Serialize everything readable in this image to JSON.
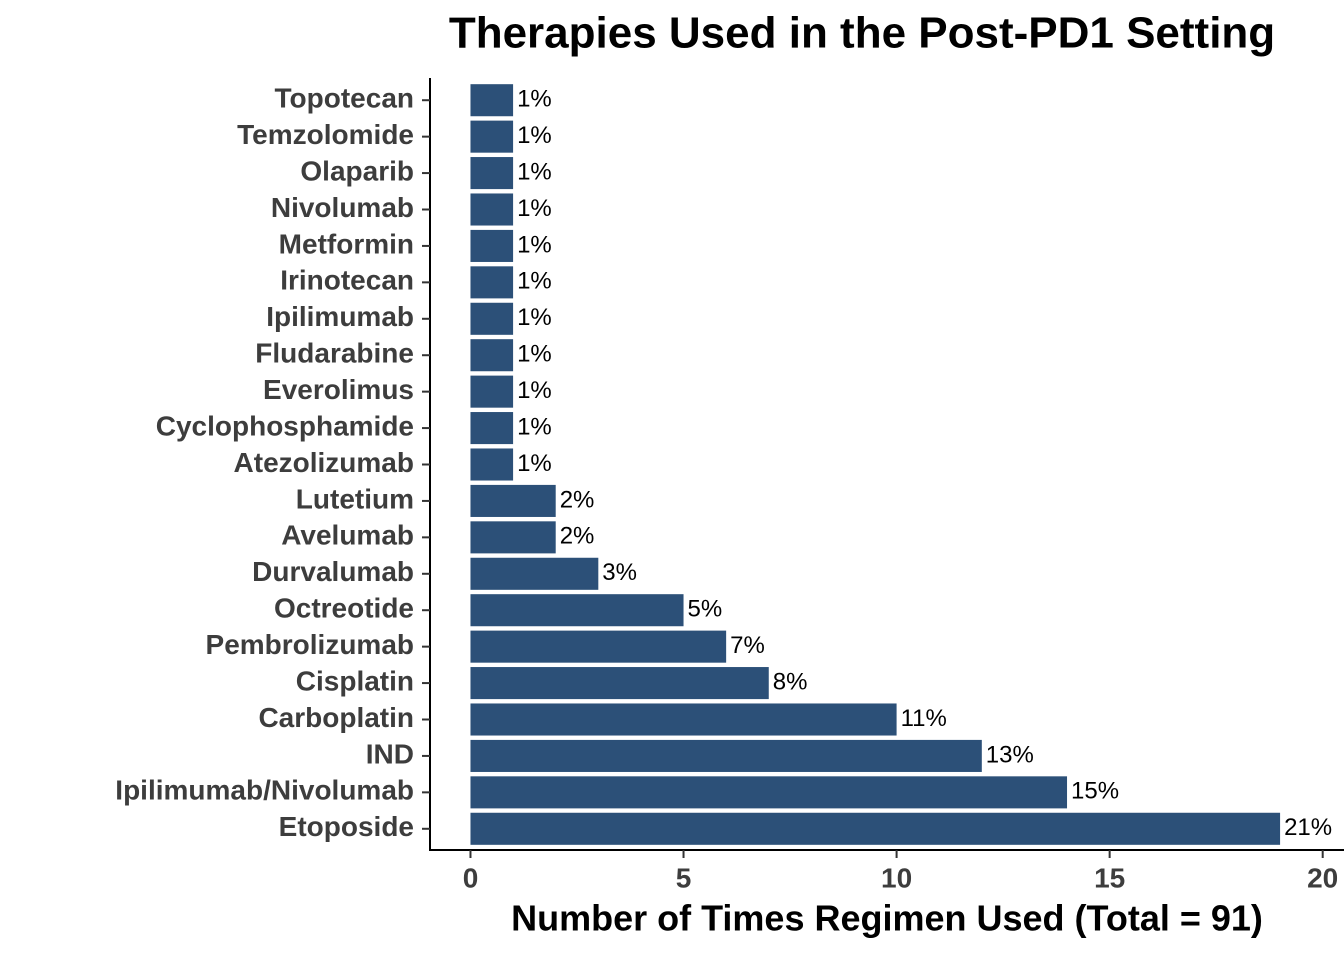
{
  "chart_data": {
    "type": "barh",
    "title": "Therapies Used in the Post-PD1 Setting",
    "x_label": "Number of Times Regimen Used (Total = 91)",
    "categories": [
      "Topotecan",
      "Temzolomide",
      "Olaparib",
      "Nivolumab",
      "Metformin",
      "Irinotecan",
      "Ipilimumab",
      "Fludarabine",
      "Everolimus",
      "Cyclophosphamide",
      "Atezolizumab",
      "Lutetium",
      "Avelumab",
      "Durvalumab",
      "Octreotide",
      "Pembrolizumab",
      "Cisplatin",
      "Carboplatin",
      "IND",
      "Ipilimumab/Nivolumab",
      "Etoposide"
    ],
    "values": [
      1,
      1,
      1,
      1,
      1,
      1,
      1,
      1,
      1,
      1,
      1,
      2,
      2,
      3,
      5,
      6,
      7,
      10,
      12,
      14,
      19
    ],
    "value_labels": [
      "1%",
      "1%",
      "1%",
      "1%",
      "1%",
      "1%",
      "1%",
      "1%",
      "1%",
      "1%",
      "1%",
      "2%",
      "2%",
      "3%",
      "5%",
      "7%",
      "8%",
      "11%",
      "13%",
      "15%",
      "21%"
    ],
    "color": "#2c5078",
    "xlim": [
      -0.95,
      20.5
    ],
    "xticks": [
      0,
      5,
      10,
      15,
      20
    ]
  }
}
